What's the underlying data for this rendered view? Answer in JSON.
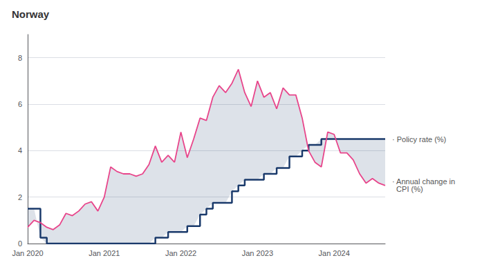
{
  "chart_data": {
    "type": "line",
    "title": "Norway",
    "categories": [
      "Jan 2020",
      null,
      null,
      null,
      null,
      null,
      null,
      null,
      null,
      null,
      null,
      null,
      "Jan 2021",
      null,
      null,
      null,
      null,
      null,
      null,
      null,
      null,
      null,
      null,
      null,
      "Jan 2022",
      null,
      null,
      null,
      null,
      null,
      null,
      null,
      null,
      null,
      null,
      null,
      "Jan 2023",
      null,
      null,
      null,
      null,
      null,
      null,
      null,
      null,
      null,
      null,
      null,
      "Jan 2024",
      null,
      null,
      null,
      null,
      null,
      null,
      null,
      null
    ],
    "series": [
      {
        "name": "· Policy rate (%)",
        "type": "step",
        "color": "#1a3a6b",
        "values": [
          1.5,
          1.5,
          0.25,
          0.0,
          0.0,
          0.0,
          0.0,
          0.0,
          0.0,
          0.0,
          0.0,
          0.0,
          0.0,
          0.0,
          0.0,
          0.0,
          0.0,
          0.0,
          0.0,
          0.0,
          0.25,
          0.25,
          0.5,
          0.5,
          0.5,
          0.75,
          0.75,
          1.25,
          1.5,
          1.75,
          1.75,
          1.75,
          2.25,
          2.5,
          2.75,
          2.75,
          2.75,
          3.0,
          3.0,
          3.25,
          3.25,
          3.75,
          3.75,
          4.0,
          4.25,
          4.25,
          4.5,
          4.5,
          4.5,
          4.5,
          4.5,
          4.5,
          4.5,
          4.5,
          4.5,
          4.5,
          4.5
        ]
      },
      {
        "name": "· Annual change in\n  CPI (%)",
        "type": "line",
        "color": "#e8448a",
        "values": [
          0.7,
          1.0,
          0.9,
          0.7,
          0.6,
          0.8,
          1.3,
          1.2,
          1.4,
          1.7,
          1.8,
          1.4,
          2.0,
          3.3,
          3.1,
          3.0,
          3.0,
          2.9,
          3.0,
          3.4,
          4.2,
          3.5,
          3.8,
          3.5,
          4.8,
          3.7,
          4.5,
          5.4,
          5.3,
          6.3,
          6.8,
          6.5,
          6.9,
          7.5,
          6.5,
          5.9,
          7.0,
          6.3,
          6.5,
          5.8,
          6.7,
          6.4,
          6.4,
          5.4,
          4.0,
          3.5,
          3.3,
          4.8,
          4.7,
          3.9,
          3.9,
          3.6,
          3.0,
          2.6,
          2.8,
          2.6,
          2.5
        ]
      }
    ],
    "ylim": [
      0,
      9
    ],
    "yticks": [
      0,
      2,
      4,
      6,
      8
    ],
    "grid": true
  }
}
